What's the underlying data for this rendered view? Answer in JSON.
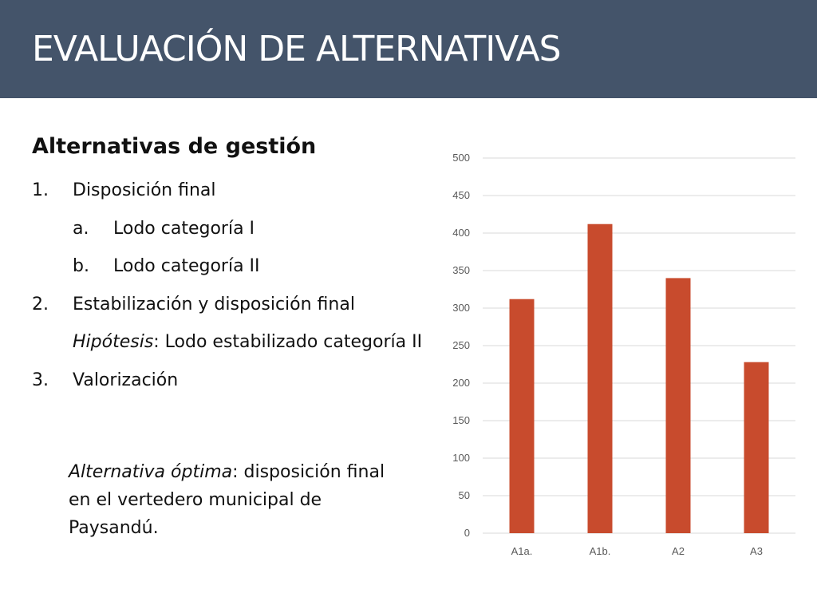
{
  "header": {
    "title": "EVALUACIÓN DE ALTERNATIVAS"
  },
  "content": {
    "heading": "Alternativas de gestión",
    "items": [
      {
        "num": "1.",
        "text": "Disposición final"
      },
      {
        "num": "a.",
        "text": "Lodo categoría I"
      },
      {
        "num": "b.",
        "text": "Lodo categoría II"
      },
      {
        "num": "2.",
        "text": "Estabilización y disposición final"
      },
      {
        "hypothesis_label": "Hipótesis",
        "hypothesis_text": ": Lodo estabilizado categoría II"
      },
      {
        "num": "3.",
        "text": "Valorización"
      }
    ],
    "conclusion_label": "Alternativa óptima",
    "conclusion_text": ": disposición final en el vertedero municipal de Paysandú."
  },
  "colors": {
    "header": "#44546a",
    "bar": "#c84b2d"
  },
  "chart_data": {
    "type": "bar",
    "categories": [
      "A1a.",
      "A1b.",
      "A2",
      "A3"
    ],
    "values": [
      312,
      412,
      340,
      228
    ],
    "ylim": [
      0,
      500
    ],
    "yticks": [
      0,
      50,
      100,
      150,
      200,
      250,
      300,
      350,
      400,
      450,
      500
    ],
    "grid": true,
    "legend": "none"
  }
}
